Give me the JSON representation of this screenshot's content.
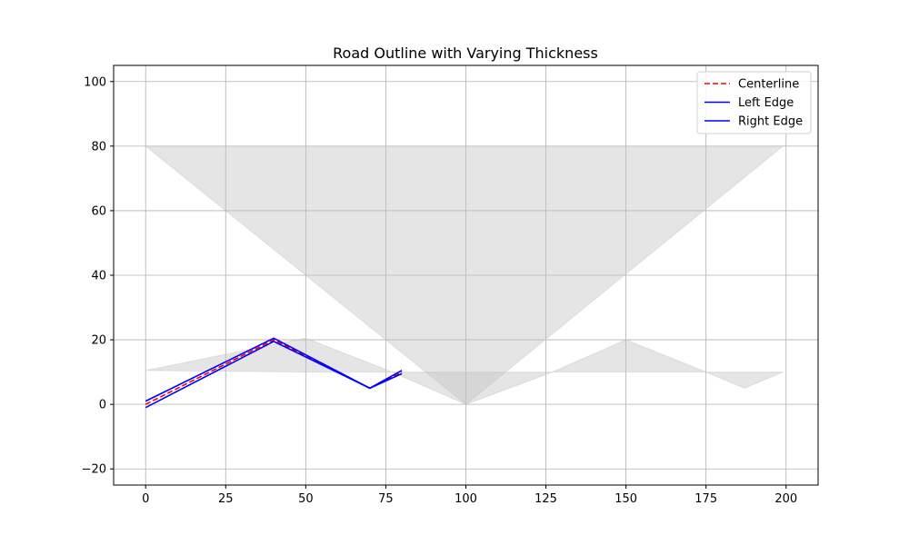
{
  "chart_data": {
    "type": "line",
    "title": "Road Outline with Varying Thickness",
    "xlabel": "",
    "ylabel": "",
    "xlim": [
      -10,
      210
    ],
    "ylim": [
      -25,
      105
    ],
    "x_ticks": [
      0,
      25,
      50,
      75,
      100,
      125,
      150,
      175,
      200
    ],
    "y_ticks": [
      -20,
      0,
      20,
      40,
      60,
      80,
      100
    ],
    "grid": true,
    "legend_position": "top-right",
    "series": [
      {
        "name": "Centerline",
        "color": "#ff0000",
        "style": "dashed",
        "points": [
          [
            0,
            0
          ],
          [
            40,
            20
          ],
          [
            70,
            5
          ],
          [
            80,
            10
          ]
        ]
      },
      {
        "name": "Left Edge",
        "color": "#0000ff",
        "style": "solid",
        "points": [
          [
            0,
            1
          ],
          [
            40,
            20.5
          ],
          [
            70,
            5
          ],
          [
            80,
            10.5
          ]
        ]
      },
      {
        "name": "Right Edge",
        "color": "#0000ff",
        "style": "solid",
        "points": [
          [
            0,
            -1
          ],
          [
            40,
            19.5
          ],
          [
            70,
            5
          ],
          [
            80,
            9.5
          ]
        ]
      }
    ],
    "shaded_polygons": [
      {
        "color": "#c0c0c0",
        "opacity": 0.42,
        "points": [
          [
            0,
            80
          ],
          [
            199,
            80
          ],
          [
            100,
            0
          ]
        ]
      },
      {
        "color": "#c0c0c0",
        "opacity": 0.42,
        "points": [
          [
            0,
            10.5
          ],
          [
            50,
            20.5
          ],
          [
            77,
            10
          ],
          [
            100,
            0
          ],
          [
            127,
            10
          ],
          [
            150,
            20
          ],
          [
            175,
            10
          ],
          [
            187,
            5
          ],
          [
            199,
            10
          ],
          [
            150,
            10
          ],
          [
            100,
            10
          ],
          [
            50,
            10
          ]
        ]
      }
    ]
  }
}
